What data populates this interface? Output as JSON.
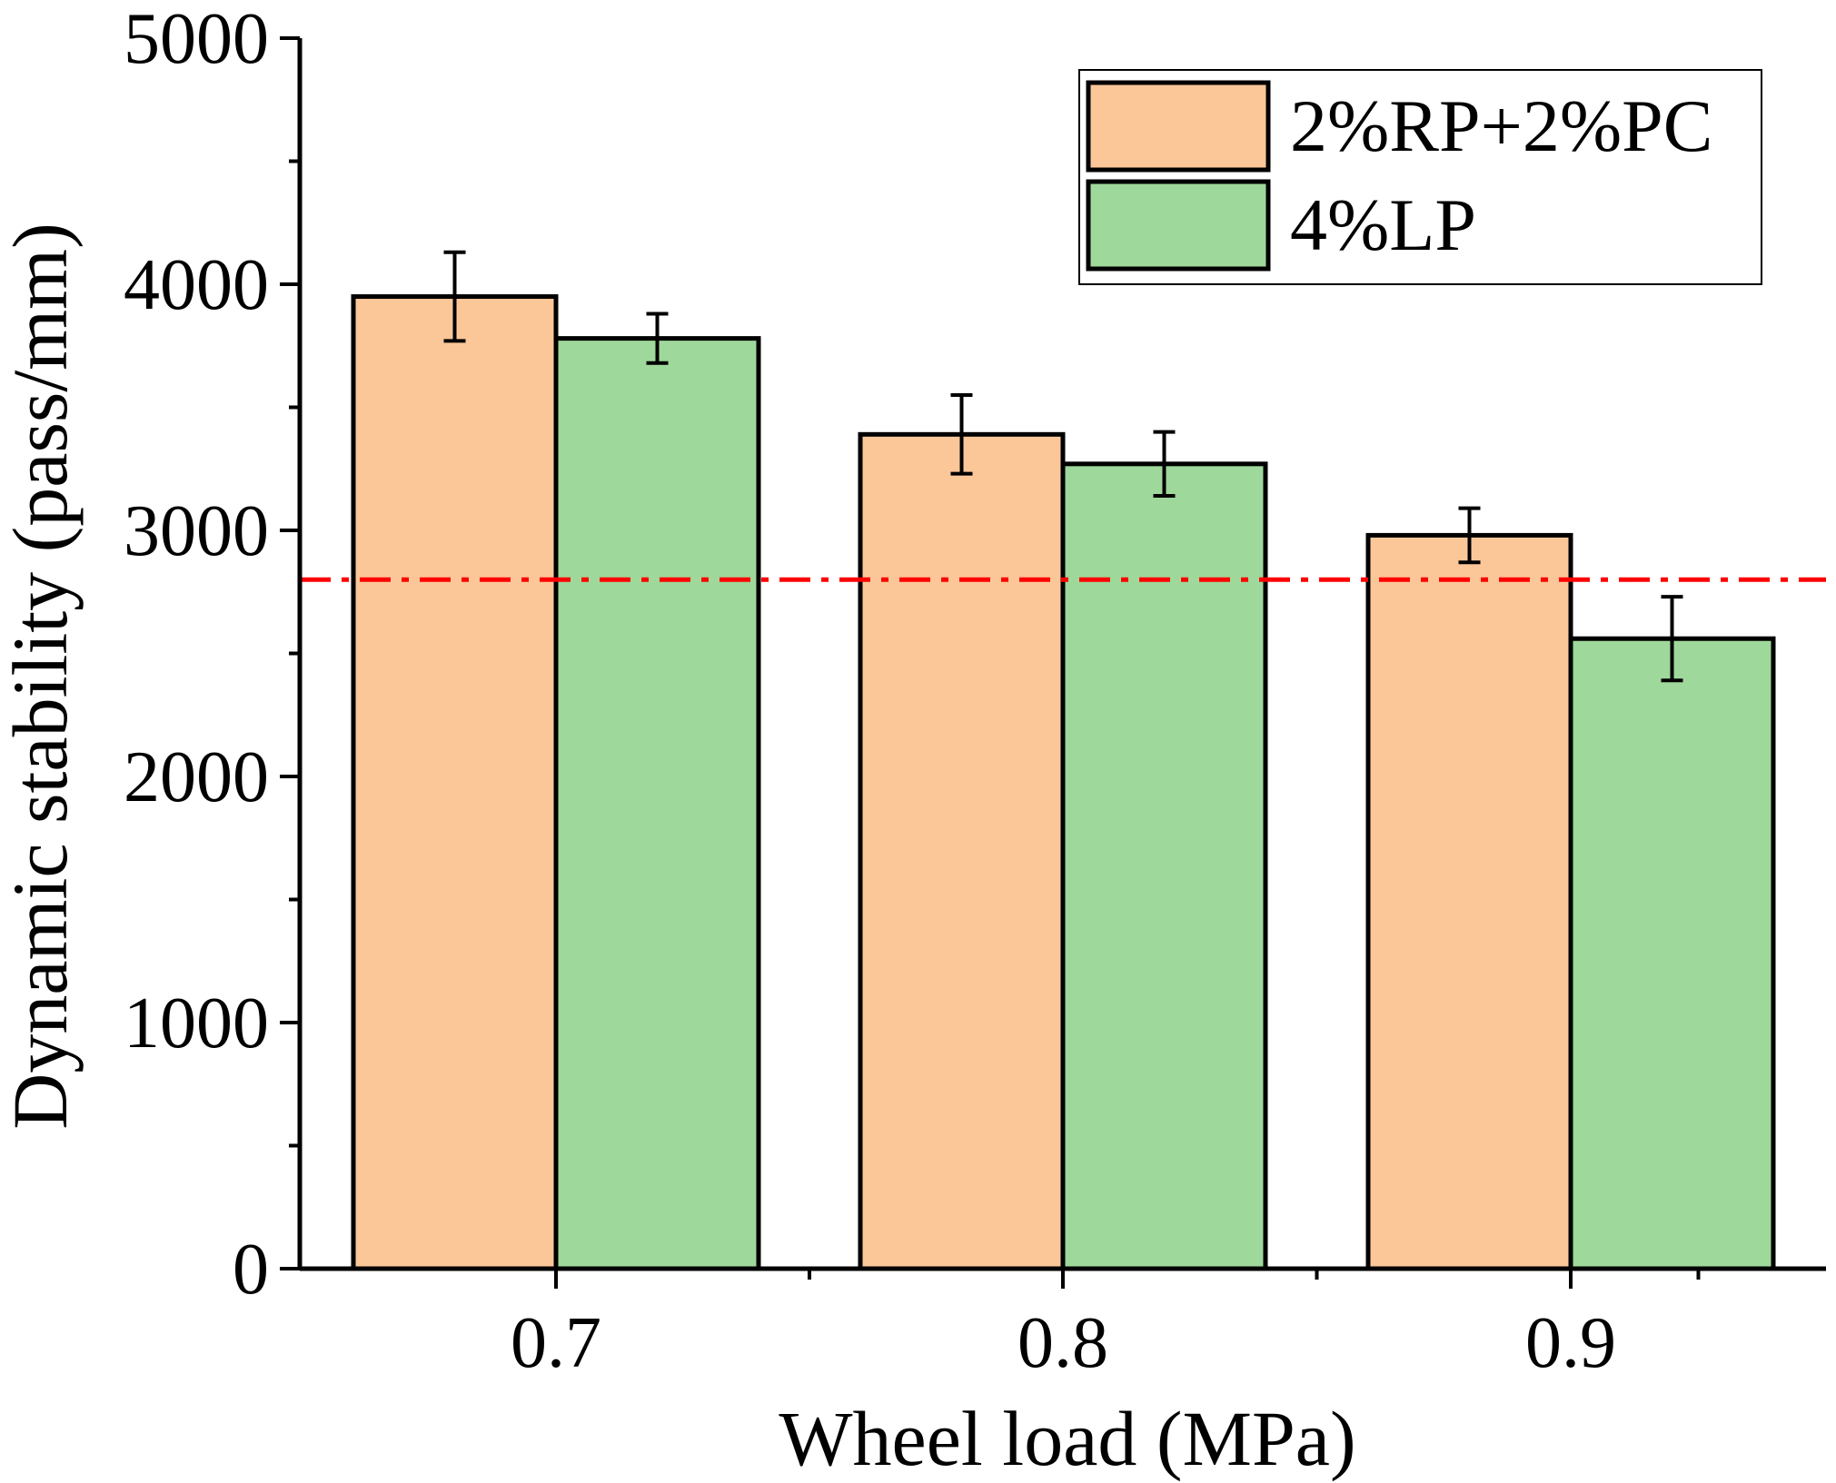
{
  "chart_data": {
    "type": "bar",
    "title": "",
    "xlabel": "Wheel load (MPa)",
    "ylabel": "Dynamic stability (pass/mm)",
    "categories": [
      "0.7",
      "0.8",
      "0.9"
    ],
    "ylim": [
      0,
      5000
    ],
    "yticks": [
      0,
      1000,
      2000,
      3000,
      4000,
      5000
    ],
    "ytick_labels": [
      "0",
      "1000",
      "2000",
      "3000",
      "4000",
      "5000"
    ],
    "series": [
      {
        "name": "2%RP+2%PC",
        "color": "#FBC799",
        "values": [
          3950,
          3390,
          2980
        ],
        "errors": [
          180,
          160,
          110
        ]
      },
      {
        "name": "4%LP",
        "color": "#9FD89B",
        "values": [
          3780,
          3270,
          2560
        ],
        "errors": [
          100,
          130,
          170
        ]
      }
    ],
    "reference_line": {
      "value": 2800,
      "color": "#FF0000",
      "style": "dash-dot"
    },
    "legend": {
      "position": "top-right"
    },
    "grid": false
  }
}
